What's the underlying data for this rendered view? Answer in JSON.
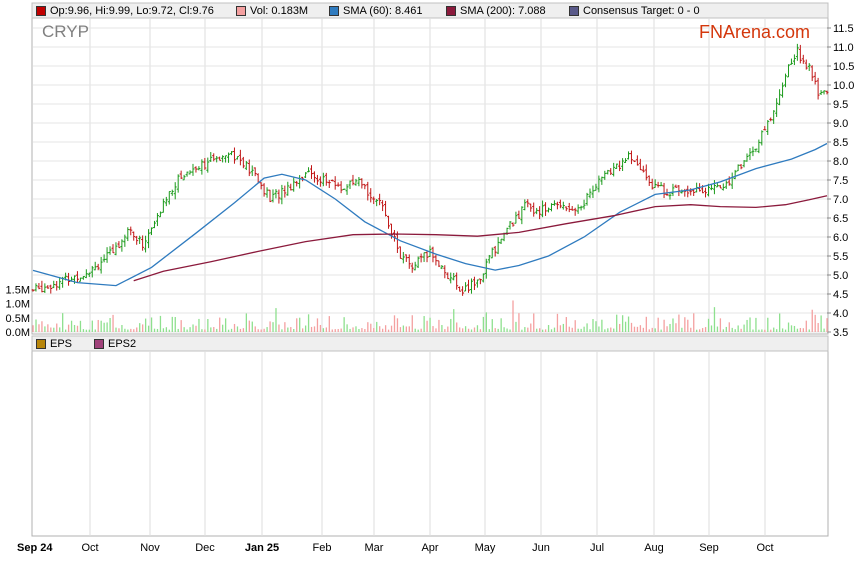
{
  "legend": {
    "ohlc": {
      "label": "Op:9.96, Hi:9.99, Lo:9.72, Cl:9.76",
      "color": "#c00000"
    },
    "vol": {
      "label": "Vol: 0.183M",
      "color": "#f4a0a0"
    },
    "sma60": {
      "label": "SMA (60): 8.461",
      "color": "#2f7bbf"
    },
    "sma200": {
      "label": "SMA (200): 7.088",
      "color": "#8b1a3c"
    },
    "consensus": {
      "label": "Consensus Target: 0 - 0",
      "color": "#5a5a8a"
    }
  },
  "ticker": "CRYP",
  "brand": "FNArena.com",
  "eps_legend": {
    "eps": {
      "label": "EPS",
      "color": "#b8860b"
    },
    "eps2": {
      "label": "EPS2",
      "color": "#a0427a"
    }
  },
  "chart_data": {
    "type": "ohlc",
    "price_axis": {
      "min": 3.5,
      "max": 11.5,
      "ticks": [
        "3.5",
        "4.0",
        "4.5",
        "5.0",
        "5.5",
        "6.0",
        "6.5",
        "7.0",
        "7.5",
        "8.0",
        "8.5",
        "9.0",
        "9.5",
        "10.0",
        "10.5",
        "11.0",
        "11.5"
      ]
    },
    "volume_axis": {
      "ticks": [
        "0.0M",
        "0.5M",
        "1.0M",
        "1.5M"
      ],
      "max": 2.0
    },
    "x_labels": [
      "Sep 24",
      "Oct",
      "Nov",
      "Dec",
      "Jan 25",
      "Feb",
      "Mar",
      "Apr",
      "May",
      "Jun",
      "Jul",
      "Aug",
      "Sep",
      "Oct"
    ],
    "price_path": [
      [
        0,
        4.6
      ],
      [
        8,
        4.8
      ],
      [
        16,
        5.0
      ],
      [
        22,
        5.3
      ],
      [
        27,
        5.6
      ],
      [
        32,
        6.2
      ],
      [
        37,
        5.8
      ],
      [
        42,
        6.5
      ],
      [
        46,
        7.2
      ],
      [
        50,
        7.6
      ],
      [
        56,
        7.9
      ],
      [
        61,
        8.0
      ],
      [
        66,
        8.3
      ],
      [
        70,
        8.0
      ],
      [
        75,
        7.6
      ],
      [
        80,
        7.0
      ],
      [
        86,
        7.3
      ],
      [
        92,
        7.7
      ],
      [
        98,
        7.5
      ],
      [
        104,
        7.3
      ],
      [
        110,
        7.4
      ],
      [
        116,
        7.0
      ],
      [
        120,
        6.4
      ],
      [
        124,
        5.5
      ],
      [
        128,
        5.2
      ],
      [
        134,
        5.6
      ],
      [
        140,
        5.0
      ],
      [
        145,
        4.6
      ],
      [
        150,
        4.8
      ],
      [
        155,
        5.6
      ],
      [
        160,
        6.2
      ],
      [
        166,
        6.8
      ],
      [
        172,
        6.7
      ],
      [
        178,
        6.9
      ],
      [
        184,
        6.7
      ],
      [
        190,
        7.4
      ],
      [
        196,
        7.8
      ],
      [
        201,
        8.1
      ],
      [
        206,
        7.7
      ],
      [
        210,
        7.3
      ],
      [
        216,
        7.2
      ],
      [
        222,
        7.3
      ],
      [
        228,
        7.2
      ],
      [
        234,
        7.4
      ],
      [
        240,
        8.0
      ],
      [
        245,
        8.5
      ],
      [
        250,
        9.3
      ],
      [
        254,
        10.3
      ],
      [
        258,
        10.9
      ],
      [
        262,
        10.4
      ],
      [
        265,
        9.8
      ],
      [
        268,
        9.76
      ]
    ],
    "sma60": [
      [
        0,
        5.12
      ],
      [
        15,
        4.8
      ],
      [
        28,
        4.72
      ],
      [
        40,
        5.2
      ],
      [
        55,
        6.1
      ],
      [
        68,
        6.9
      ],
      [
        78,
        7.55
      ],
      [
        84,
        7.65
      ],
      [
        92,
        7.5
      ],
      [
        102,
        7.0
      ],
      [
        112,
        6.4
      ],
      [
        124,
        5.9
      ],
      [
        136,
        5.55
      ],
      [
        146,
        5.3
      ],
      [
        156,
        5.13
      ],
      [
        164,
        5.25
      ],
      [
        174,
        5.5
      ],
      [
        186,
        6.0
      ],
      [
        198,
        6.65
      ],
      [
        210,
        7.12
      ],
      [
        222,
        7.24
      ],
      [
        232,
        7.45
      ],
      [
        244,
        7.8
      ],
      [
        256,
        8.05
      ],
      [
        264,
        8.3
      ],
      [
        268,
        8.46
      ]
    ],
    "sma200": [
      [
        34,
        4.85
      ],
      [
        44,
        5.1
      ],
      [
        60,
        5.35
      ],
      [
        76,
        5.62
      ],
      [
        92,
        5.88
      ],
      [
        108,
        6.06
      ],
      [
        122,
        6.08
      ],
      [
        136,
        6.06
      ],
      [
        150,
        6.02
      ],
      [
        164,
        6.12
      ],
      [
        180,
        6.35
      ],
      [
        196,
        6.56
      ],
      [
        210,
        6.8
      ],
      [
        222,
        6.85
      ],
      [
        232,
        6.8
      ],
      [
        244,
        6.78
      ],
      [
        254,
        6.85
      ],
      [
        262,
        6.98
      ],
      [
        268,
        7.088
      ]
    ],
    "series_count": 269
  }
}
